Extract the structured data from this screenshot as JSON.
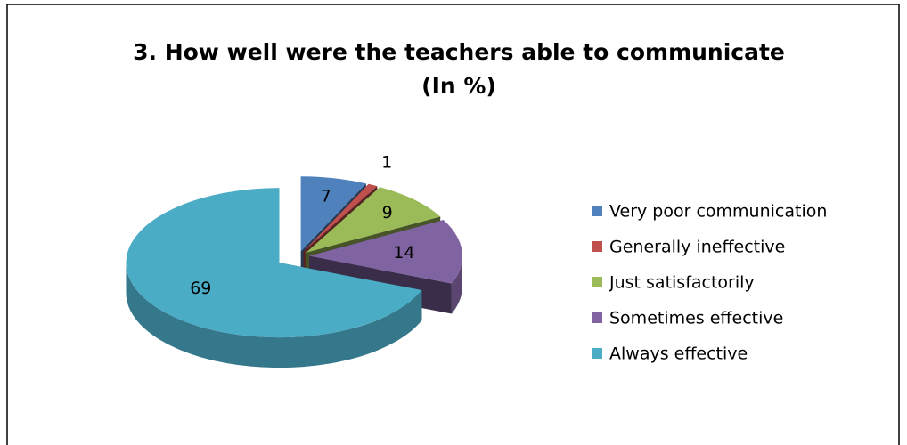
{
  "chart_data": {
    "type": "pie",
    "title": "3. How well were the teachers able to communicate (In %)",
    "categories": [
      "Very poor communication",
      "Generally ineffective",
      "Just satisfactorily",
      "Sometimes effective",
      "Always effective"
    ],
    "values": [
      7,
      1,
      9,
      14,
      69
    ],
    "colors": [
      "#4f81bd",
      "#c0504d",
      "#9bbb59",
      "#8064a2",
      "#4bacc6"
    ],
    "legend": "right"
  }
}
